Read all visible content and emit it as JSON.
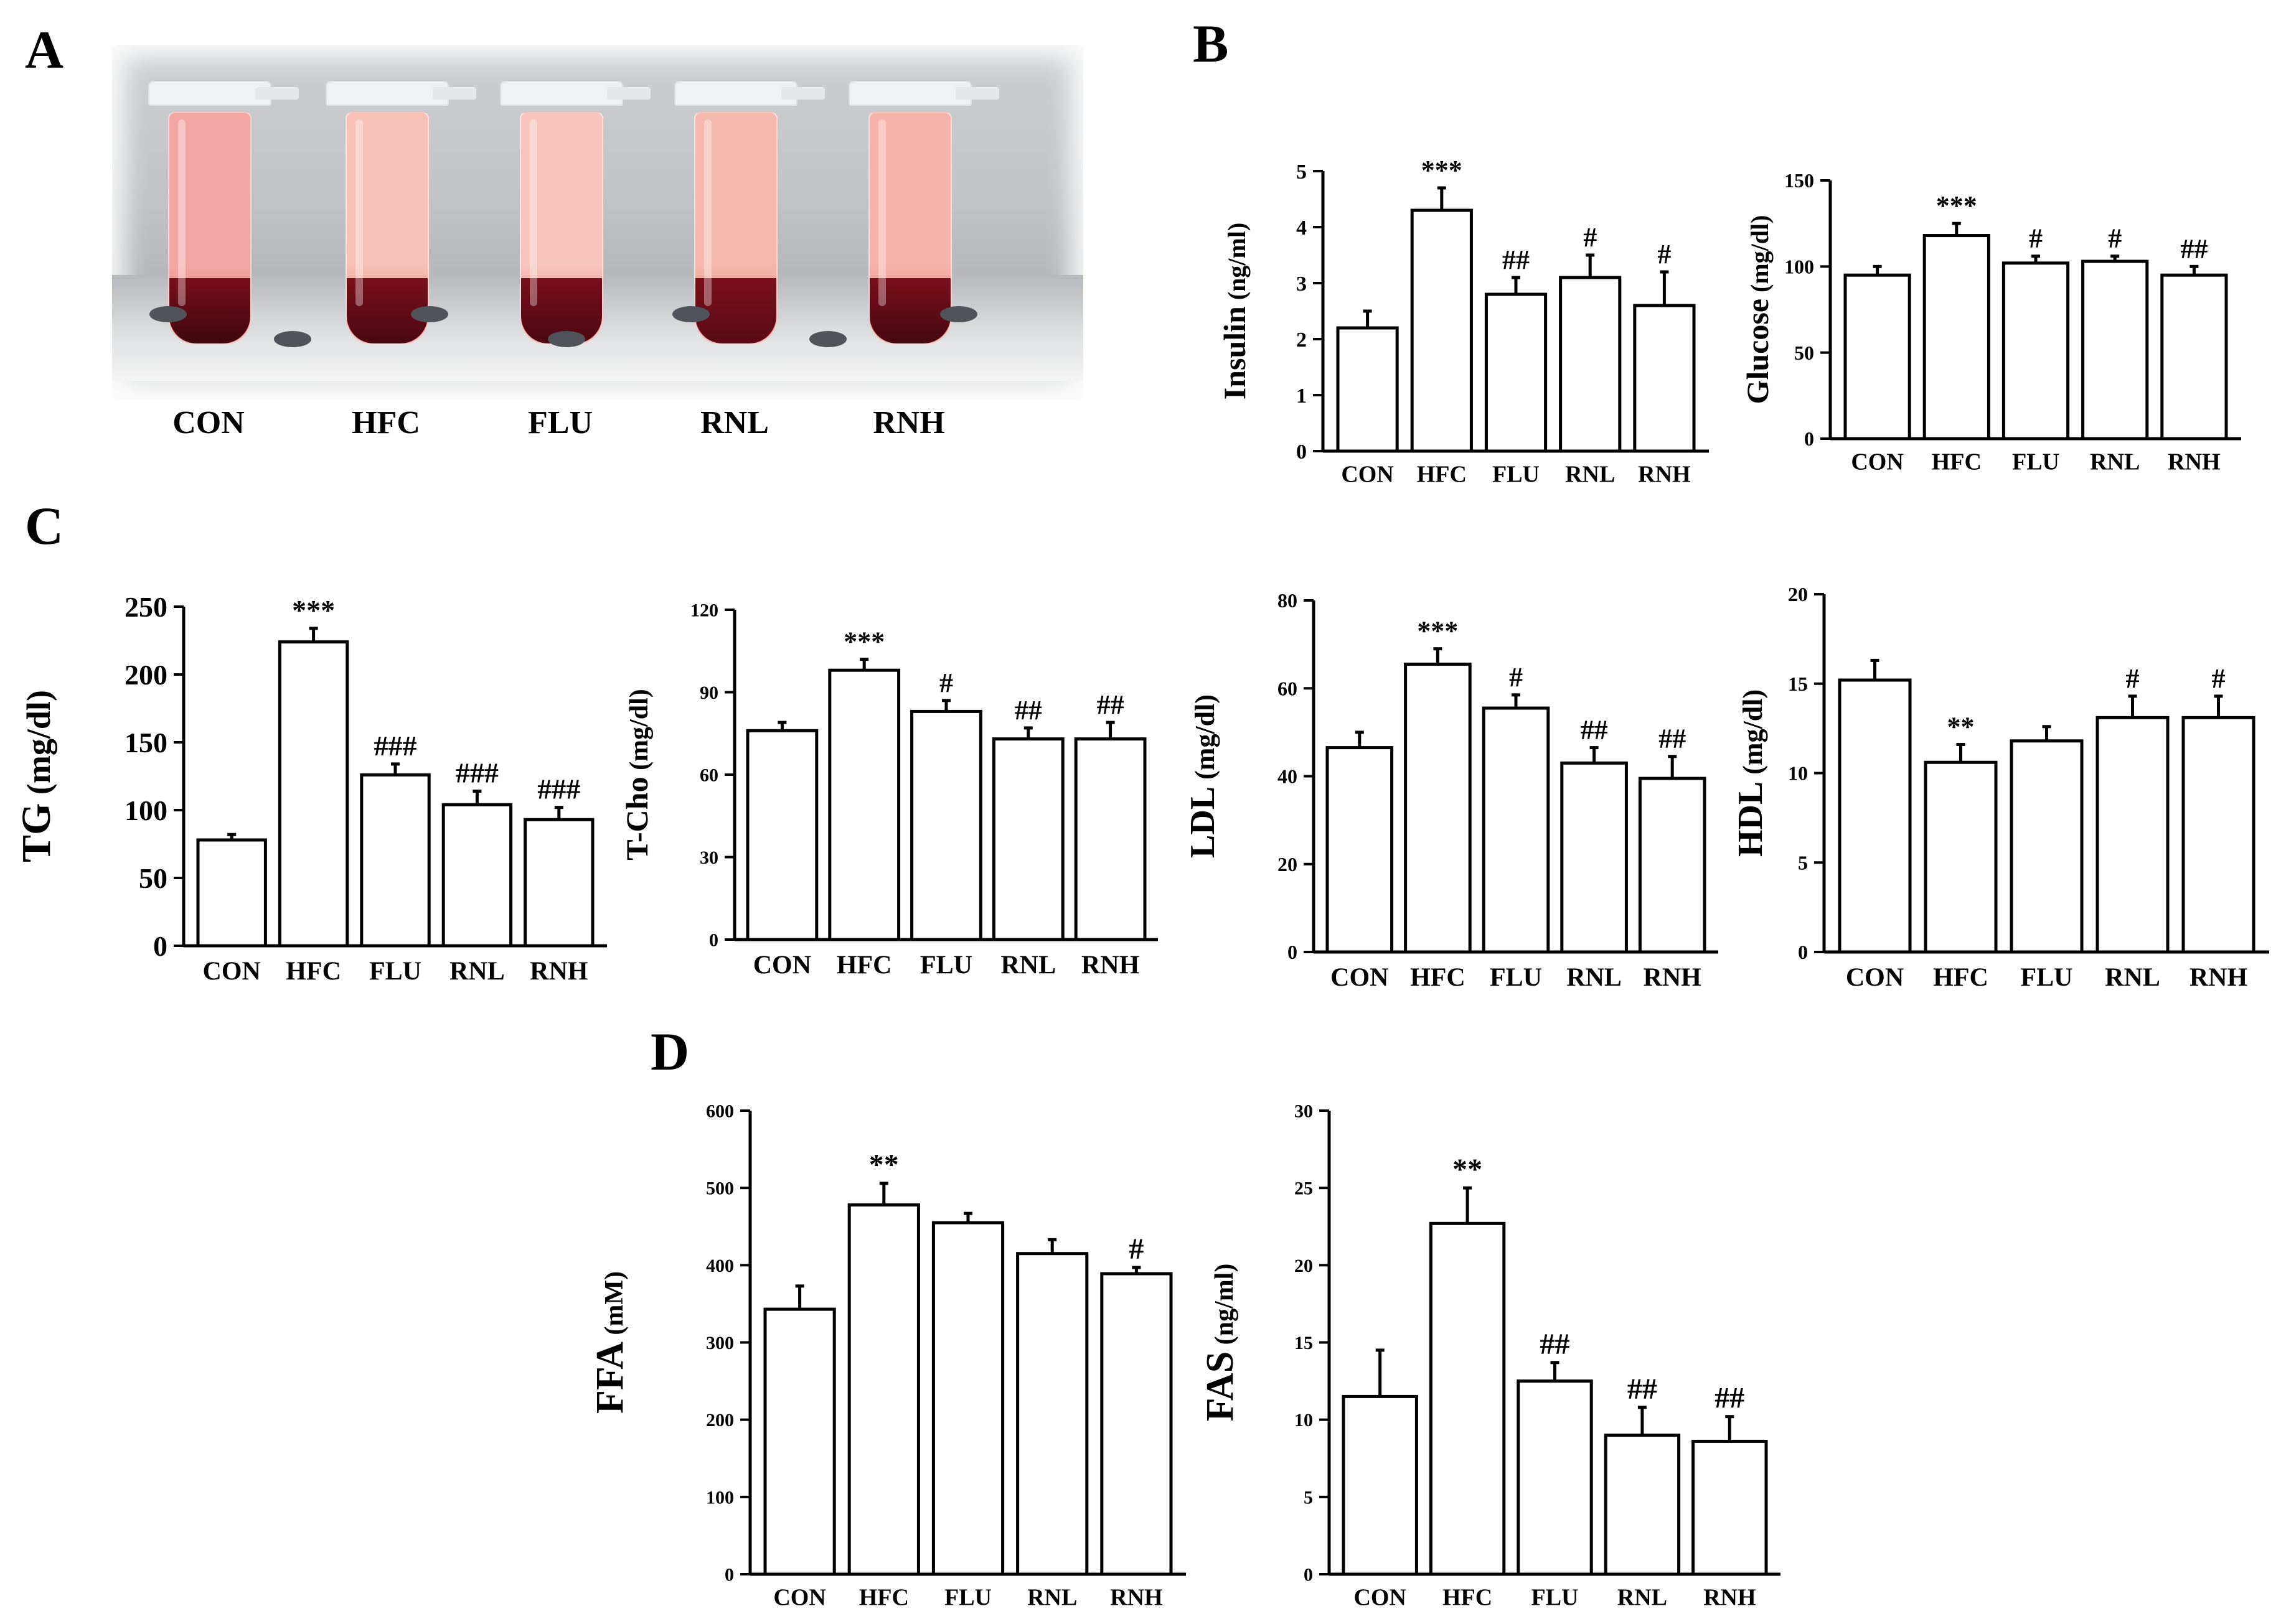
{
  "panels": {
    "A": "A",
    "B": "B",
    "C": "C",
    "D": "D"
  },
  "photo": {
    "tubes": [
      {
        "label": "CON",
        "serum": "#f3a7a4",
        "pellet": "#3e0710"
      },
      {
        "label": "HFC",
        "serum": "#f7c1b7",
        "pellet": "#4a0812"
      },
      {
        "label": "FLU",
        "serum": "#f8c5bd",
        "pellet": "#4a0812"
      },
      {
        "label": "RNL",
        "serum": "#f4b8ae",
        "pellet": "#5a0b16"
      },
      {
        "label": "RNH",
        "serum": "#f5b3ab",
        "pellet": "#450812"
      }
    ]
  },
  "chart_data": [
    {
      "id": "insulin",
      "type": "bar",
      "ylabel": "Insulin",
      "yunit": "(ng/ml)",
      "categories": [
        "CON",
        "HFC",
        "FLU",
        "RNL",
        "RNH"
      ],
      "values": [
        2.2,
        4.3,
        2.8,
        3.1,
        2.6
      ],
      "errors": [
        0.3,
        0.4,
        0.3,
        0.4,
        0.6
      ],
      "annotations": [
        "",
        "***",
        "##",
        "#",
        "#"
      ],
      "ylim": [
        0,
        5
      ],
      "yticks": [
        0,
        1,
        2,
        3,
        4,
        5
      ]
    },
    {
      "id": "glucose",
      "type": "bar",
      "ylabel": "Glucose",
      "yunit": "(mg/dl)",
      "categories": [
        "CON",
        "HFC",
        "FLU",
        "RNL",
        "RNH"
      ],
      "values": [
        95,
        118,
        102,
        103,
        95
      ],
      "errors": [
        5,
        7,
        4,
        3,
        5
      ],
      "annotations": [
        "",
        "***",
        "#",
        "#",
        "##"
      ],
      "ylim": [
        0,
        150
      ],
      "yticks": [
        0,
        50,
        100,
        150
      ]
    },
    {
      "id": "tg",
      "type": "bar",
      "ylabel": "TG",
      "yunit": "(mg/dl)",
      "categories": [
        "CON",
        "HFC",
        "FLU",
        "RNL",
        "RNH"
      ],
      "values": [
        78,
        224,
        126,
        104,
        93
      ],
      "errors": [
        4,
        10,
        8,
        10,
        9
      ],
      "annotations": [
        "",
        "***",
        "###",
        "###",
        "###"
      ],
      "ylim": [
        0,
        250
      ],
      "yticks": [
        0,
        50,
        100,
        150,
        200,
        250
      ]
    },
    {
      "id": "tcho",
      "type": "bar",
      "ylabel": "T-Cho",
      "yunit": "(mg/dl)",
      "categories": [
        "CON",
        "HFC",
        "FLU",
        "RNL",
        "RNH"
      ],
      "values": [
        76,
        98,
        83,
        73,
        73
      ],
      "errors": [
        3,
        4,
        4,
        4,
        6
      ],
      "annotations": [
        "",
        "***",
        "#",
        "##",
        "##"
      ],
      "ylim": [
        0,
        120
      ],
      "yticks": [
        0,
        30,
        60,
        90,
        120
      ]
    },
    {
      "id": "ldl",
      "type": "bar",
      "ylabel": "LDL",
      "yunit": "(mg/dl)",
      "categories": [
        "CON",
        "HFC",
        "FLU",
        "RNL",
        "RNH"
      ],
      "values": [
        46.5,
        65.5,
        55.5,
        43,
        39.5
      ],
      "errors": [
        3.5,
        3.5,
        3,
        3.5,
        5
      ],
      "annotations": [
        "",
        "***",
        "#",
        "##",
        "##"
      ],
      "ylim": [
        0,
        80
      ],
      "yticks": [
        0,
        20,
        40,
        60,
        80
      ]
    },
    {
      "id": "hdl",
      "type": "bar",
      "ylabel": "HDL",
      "yunit": "(mg/dl)",
      "categories": [
        "CON",
        "HFC",
        "FLU",
        "RNL",
        "RNH"
      ],
      "values": [
        15.2,
        10.6,
        11.8,
        13.1,
        13.1
      ],
      "errors": [
        1.1,
        1.0,
        0.8,
        1.2,
        1.2
      ],
      "annotations": [
        "",
        "**",
        "",
        "#",
        "#"
      ],
      "ylim": [
        0,
        20
      ],
      "yticks": [
        0,
        5,
        10,
        15,
        20
      ]
    },
    {
      "id": "ffa",
      "type": "bar",
      "ylabel": "FFA",
      "yunit": "(mM)",
      "categories": [
        "CON",
        "HFC",
        "FLU",
        "RNL",
        "RNH"
      ],
      "values": [
        343,
        478,
        455,
        415,
        389
      ],
      "errors": [
        30,
        28,
        12,
        18,
        8
      ],
      "annotations": [
        "",
        "**",
        "",
        "",
        "#"
      ],
      "ylim": [
        0,
        600
      ],
      "yticks": [
        0,
        100,
        200,
        300,
        400,
        500,
        600
      ]
    },
    {
      "id": "fas",
      "type": "bar",
      "ylabel": "FAS",
      "yunit": "(ng/ml)",
      "categories": [
        "CON",
        "HFC",
        "FLU",
        "RNL",
        "RNH"
      ],
      "values": [
        11.5,
        22.7,
        12.5,
        9,
        8.6
      ],
      "errors": [
        3,
        2.3,
        1.2,
        1.8,
        1.6
      ],
      "annotations": [
        "",
        "**",
        "##",
        "##",
        "##"
      ],
      "ylim": [
        0,
        30
      ],
      "yticks": [
        0,
        5,
        10,
        15,
        20,
        25,
        30
      ]
    }
  ]
}
